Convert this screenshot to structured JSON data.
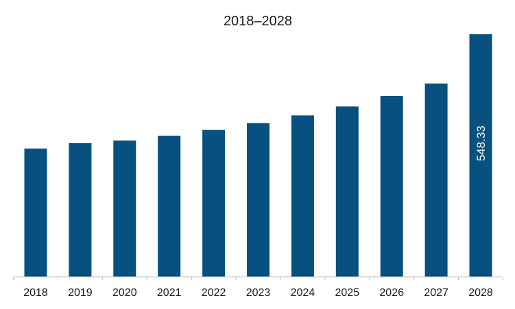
{
  "chart_data": {
    "type": "bar",
    "title": "2018–2028",
    "categories": [
      "2018",
      "2019",
      "2020",
      "2021",
      "2022",
      "2023",
      "2024",
      "2025",
      "2026",
      "2027",
      "2028"
    ],
    "values": [
      290.0,
      302.0,
      308.0,
      319.0,
      332.0,
      347.5,
      365.0,
      385.0,
      409.0,
      437.0,
      548.33
    ],
    "data_labels": [
      {
        "category": "2028",
        "text": "548.33"
      }
    ],
    "xlabel": "",
    "ylabel": "",
    "ylim": [
      0,
      548.33
    ],
    "grid": false,
    "legend": "none",
    "colors": {
      "bar": "#07507f",
      "axis": "#bfbfbf"
    }
  }
}
